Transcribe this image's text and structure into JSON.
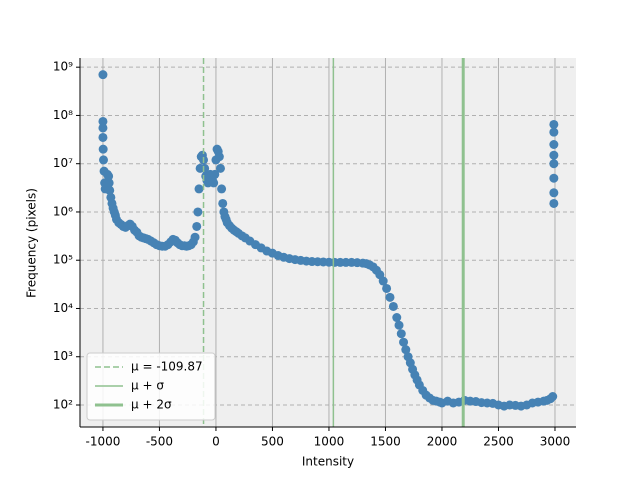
{
  "chart_data": {
    "type": "scatter",
    "xlabel": "Intensity",
    "ylabel": "Frequency (pixels)",
    "xlim": [
      -1203,
      3186
    ],
    "ylim": [
      35,
      1550000000
    ],
    "xticks": [
      -1000,
      -500,
      0,
      500,
      1000,
      1500,
      2000,
      2500,
      3000
    ],
    "yticks": [
      {
        "value": 100,
        "label": "10²"
      },
      {
        "value": 1000,
        "label": "10³"
      },
      {
        "value": 10000,
        "label": "10⁴"
      },
      {
        "value": 100000,
        "label": "10⁵"
      },
      {
        "value": 1000000,
        "label": "10⁶"
      },
      {
        "value": 10000000,
        "label": "10⁷"
      },
      {
        "value": 100000000,
        "label": "10⁸"
      },
      {
        "value": 1000000000,
        "label": "10⁹"
      }
    ],
    "yscale": "log",
    "grid": true,
    "legend": "lower left",
    "series": [
      {
        "color": "#4682b4",
        "x": [
          -1000,
          -1000,
          -1000,
          -1000,
          -998,
          -995,
          -990,
          -985,
          -980,
          -970,
          -960,
          -950,
          -945,
          -940,
          -930,
          -920,
          -910,
          -900,
          -890,
          -880,
          -860,
          -840,
          -820,
          -800,
          -780,
          -760,
          -740,
          -720,
          -700,
          -680,
          -660,
          -640,
          -620,
          -600,
          -575,
          -550,
          -525,
          -500,
          -475,
          -450,
          -425,
          -400,
          -380,
          -360,
          -340,
          -320,
          -300,
          -280,
          -260,
          -240,
          -220,
          -200,
          -185,
          -170,
          -160,
          -150,
          -140,
          -130,
          -120,
          -110,
          -100,
          -90,
          -80,
          -70,
          -60,
          -50,
          -40,
          -30,
          -20,
          -10,
          0,
          10,
          20,
          30,
          40,
          50,
          60,
          70,
          80,
          90,
          100,
          120,
          140,
          160,
          180,
          200,
          230,
          260,
          300,
          350,
          400,
          450,
          500,
          550,
          600,
          650,
          700,
          750,
          800,
          850,
          900,
          950,
          1000,
          1050,
          1100,
          1150,
          1200,
          1250,
          1300,
          1330,
          1360,
          1390,
          1420,
          1450,
          1480,
          1510,
          1540,
          1570,
          1600,
          1620,
          1640,
          1660,
          1680,
          1700,
          1720,
          1740,
          1760,
          1780,
          1800,
          1830,
          1860,
          1890,
          1920,
          1950,
          1980,
          2000,
          2050,
          2100,
          2150,
          2200,
          2250,
          2300,
          2350,
          2400,
          2450,
          2500,
          2550,
          2600,
          2650,
          2700,
          2750,
          2800,
          2850,
          2900,
          2930,
          2960,
          2980,
          2990,
          2990,
          2990,
          2990,
          2990,
          2990,
          2990,
          2990
        ],
        "values": [
          700000000,
          75000000,
          55000000,
          35000000,
          20000000,
          12000000,
          7000000,
          4000000,
          3000000,
          3500000,
          6000000,
          5500000,
          4000000,
          2800000,
          2000000,
          1500000,
          1200000,
          1000000,
          850000,
          700000,
          600000,
          550000,
          500000,
          480000,
          520000,
          560000,
          500000,
          420000,
          380000,
          320000,
          300000,
          290000,
          280000,
          270000,
          250000,
          230000,
          210000,
          200000,
          195000,
          195000,
          210000,
          240000,
          270000,
          260000,
          230000,
          210000,
          200000,
          200000,
          195000,
          200000,
          210000,
          240000,
          300000,
          500000,
          1000000,
          3000000,
          8000000,
          14000000,
          15000000,
          12000000,
          8000000,
          5500000,
          4500000,
          4000000,
          5000000,
          6000000,
          5500000,
          4500000,
          4000000,
          6000000,
          12000000,
          20000000,
          18000000,
          14000000,
          8000000,
          3000000,
          1500000,
          1000000,
          800000,
          700000,
          600000,
          520000,
          460000,
          420000,
          390000,
          360000,
          320000,
          290000,
          250000,
          210000,
          180000,
          155000,
          140000,
          125000,
          115000,
          108000,
          103000,
          99000,
          96000,
          94000,
          93000,
          92000,
          91000,
          90000,
          90000,
          90000,
          90000,
          89000,
          87000,
          85000,
          80000,
          73000,
          62000,
          50000,
          37000,
          26000,
          17000,
          11000,
          6500,
          4500,
          3000,
          2000,
          1400,
          1000,
          750,
          550,
          420,
          330,
          260,
          200,
          160,
          140,
          125,
          120,
          115,
          110,
          120,
          110,
          115,
          125,
          120,
          118,
          112,
          110,
          108,
          100,
          95,
          100,
          98,
          95,
          100,
          110,
          115,
          120,
          125,
          135,
          150,
          1500000,
          2500000,
          5000000,
          10000000,
          15000000,
          25000000,
          45000000,
          65000000
        ]
      }
    ],
    "vlines": [
      {
        "name": "μ = -109.87",
        "value": -109.87,
        "color": "#8fc18f",
        "style": "dashed",
        "width": 1.5
      },
      {
        "name": "μ + σ",
        "value": 1039,
        "color": "#8fc18f",
        "style": "solid",
        "width": 1.5
      },
      {
        "name": "μ + 2σ",
        "value": 2188,
        "color": "#8fc18f",
        "style": "solid",
        "width": 3
      }
    ]
  }
}
